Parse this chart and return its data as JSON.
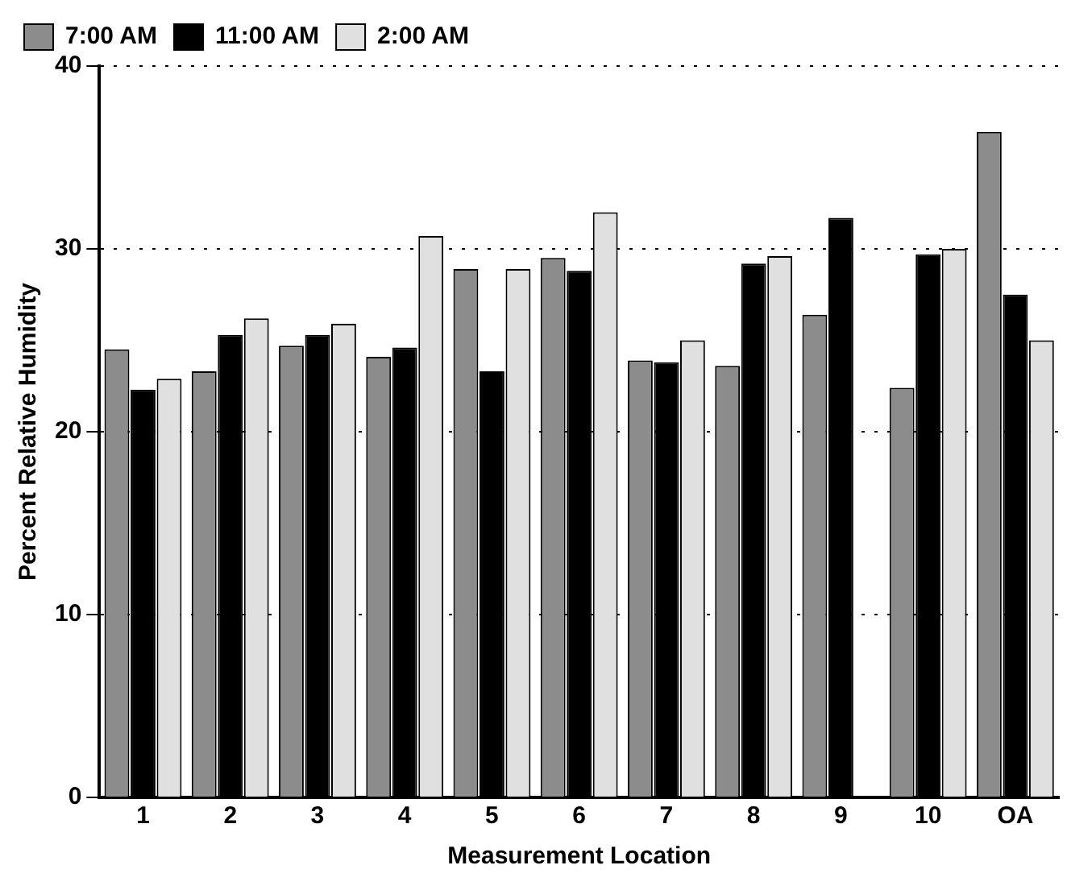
{
  "chart_data": {
    "type": "bar",
    "xlabel": "Measurement Location",
    "ylabel": "Percent Relative Humidity",
    "categories": [
      "1",
      "2",
      "3",
      "4",
      "5",
      "6",
      "7",
      "8",
      "9",
      "10",
      "OA"
    ],
    "series": [
      {
        "name": "7:00 AM",
        "color": "#8c8c8c",
        "values": [
          24.5,
          23.3,
          24.7,
          24.1,
          28.9,
          29.5,
          23.9,
          23.6,
          26.4,
          22.4,
          36.4
        ]
      },
      {
        "name": "11:00 AM",
        "color": "#000000",
        "values": [
          22.3,
          25.3,
          25.3,
          24.6,
          23.3,
          28.8,
          23.8,
          29.2,
          31.7,
          29.7,
          27.5
        ]
      },
      {
        "name": "2:00 AM",
        "color": "#e0e0e0",
        "values": [
          22.9,
          26.2,
          25.9,
          30.7,
          28.9,
          32.0,
          25.0,
          29.6,
          null,
          30.0,
          25.0
        ]
      }
    ],
    "ylim": [
      0,
      40
    ],
    "yticks": [
      0,
      10,
      20,
      30,
      40
    ],
    "grid": "y",
    "legend": "top left"
  }
}
